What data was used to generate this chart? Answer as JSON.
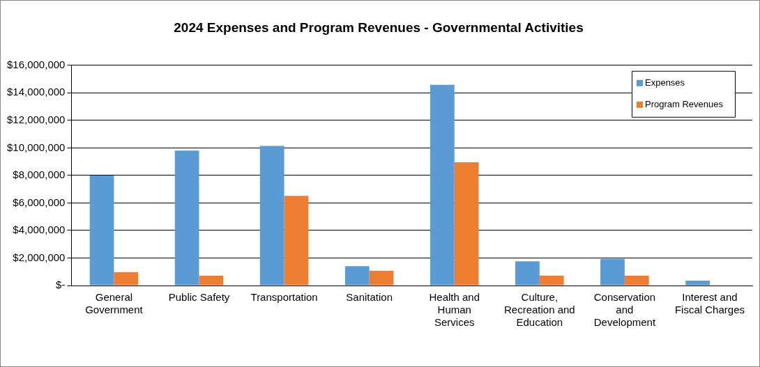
{
  "chart_data": {
    "type": "bar",
    "title": "2024 Expenses and Program Revenues - Governmental Activities",
    "categories": [
      "General Government",
      "Public Safety",
      "Transportation",
      "Sanitation",
      "Health and Human Services",
      "Culture, Recreation and Education",
      "Conservation and Development",
      "Interest and Fiscal Charges"
    ],
    "series": [
      {
        "name": "Expenses",
        "color": "#5b9bd5",
        "values": [
          8000000,
          9800000,
          10150000,
          1410000,
          14580000,
          1760000,
          1930000,
          360000
        ]
      },
      {
        "name": "Program Revenues",
        "color": "#ed7d31",
        "values": [
          980000,
          720000,
          6520000,
          1070000,
          8960000,
          720000,
          720000,
          0
        ]
      }
    ],
    "ylim": [
      0,
      16000000
    ],
    "yticks": [
      {
        "value": 0,
        "label": "$-"
      },
      {
        "value": 2000000,
        "label": "$2,000,000"
      },
      {
        "value": 4000000,
        "label": "$4,000,000"
      },
      {
        "value": 6000000,
        "label": "$6,000,000"
      },
      {
        "value": 8000000,
        "label": "$8,000,000"
      },
      {
        "value": 10000000,
        "label": "$10,000,000"
      },
      {
        "value": 12000000,
        "label": "$12,000,000"
      },
      {
        "value": 14000000,
        "label": "$14,000,000"
      },
      {
        "value": 16000000,
        "label": "$16,000,000"
      }
    ],
    "grid": "y",
    "legend": "top right"
  }
}
